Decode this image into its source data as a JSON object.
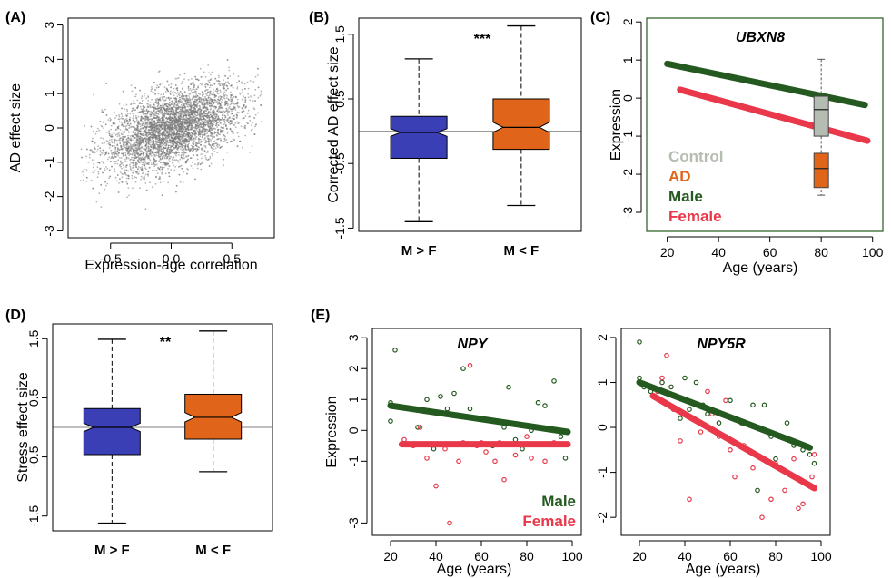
{
  "colors": {
    "scatter": "#7a7a7a",
    "blue": "#3a3fb5",
    "orange": "#e06419",
    "green": "#245a1f",
    "red": "#e8384a",
    "control": "#b5bdb2",
    "refline": "#9a9a9a"
  },
  "chart_data": [
    {
      "panel": "(A)",
      "type": "scatter",
      "xlabel": "Expression-age correlation",
      "ylabel": "AD effect size",
      "xlim": [
        -0.85,
        0.85
      ],
      "ylim": [
        -3.2,
        3.2
      ],
      "xticks": [
        "-0.5",
        "0.0",
        "0.5"
      ],
      "xtick_values": [
        -0.5,
        0.0,
        0.5
      ],
      "yticks": [
        "-3",
        "-2",
        "-1",
        "0",
        "1",
        "2",
        "3"
      ],
      "ytick_values": [
        -3,
        -2,
        -1,
        0,
        1,
        2,
        3
      ],
      "trend": {
        "slope": 1.15,
        "intercept": -0.05,
        "spread": 0.55
      }
    },
    {
      "panel": "(B)",
      "type": "box",
      "ylabel": "Corrected AD effect size",
      "categories": [
        "M > F",
        "M < F"
      ],
      "significance": "***",
      "ylim": [
        -1.55,
        1.75
      ],
      "yticks": [
        "-1.5",
        "-0.5",
        "0.5",
        "1.5"
      ],
      "ytick_values": [
        -1.5,
        -0.5,
        0.5,
        1.5
      ],
      "boxes": [
        {
          "min": -1.4,
          "q1": -0.42,
          "median": -0.02,
          "q3": 0.23,
          "max": 1.12,
          "notch": 0.06
        },
        {
          "min": -1.15,
          "q1": -0.28,
          "median": 0.06,
          "q3": 0.5,
          "max": 1.63,
          "notch": 0.08
        }
      ]
    },
    {
      "panel": "(C)",
      "type": "line",
      "title": "UBXN8",
      "xlabel": "Age (years)",
      "ylabel": "Expression",
      "xlim": [
        12,
        104
      ],
      "ylim": [
        -3.5,
        2.1
      ],
      "xticks": [
        "20",
        "40",
        "60",
        "80",
        "100"
      ],
      "xtick_values": [
        20,
        40,
        60,
        80,
        100
      ],
      "yticks": [
        "-3",
        "-2",
        "-1",
        "0",
        "1",
        "2"
      ],
      "ytick_values": [
        -3,
        -2,
        -1,
        0,
        1,
        2
      ],
      "series": [
        {
          "name": "Male",
          "x": [
            20,
            97
          ],
          "y": [
            0.9,
            -0.18
          ]
        },
        {
          "name": "Female",
          "x": [
            25,
            98
          ],
          "y": [
            0.22,
            -1.12
          ]
        }
      ],
      "boxes": [
        {
          "name": "Control",
          "x": 80,
          "min": -2.05,
          "q1": -1.0,
          "median": -0.3,
          "q3": 0.05,
          "max": 1.02
        },
        {
          "name": "AD",
          "x": 80,
          "min": -2.55,
          "q1": -2.35,
          "median": -1.85,
          "q3": -1.45,
          "max": -1.45
        }
      ],
      "legend": [
        "Control",
        "AD",
        "Male",
        "Female"
      ],
      "legend_position": "bottom-left"
    },
    {
      "panel": "(D)",
      "type": "box",
      "ylabel": "Stress effect size",
      "categories": [
        "M > F",
        "M < F"
      ],
      "significance": "**",
      "ylim": [
        -1.75,
        1.75
      ],
      "yticks": [
        "-1.5",
        "-0.5",
        "0.5",
        "1.5"
      ],
      "ytick_values": [
        -1.5,
        -0.5,
        0.5,
        1.5
      ],
      "boxes": [
        {
          "min": -1.62,
          "q1": -0.46,
          "median": 0.0,
          "q3": 0.32,
          "max": 1.49,
          "notch": 0.07
        },
        {
          "min": -0.75,
          "q1": -0.2,
          "median": 0.17,
          "q3": 0.56,
          "max": 1.63,
          "notch": 0.08
        }
      ]
    },
    {
      "panel": "(E)",
      "type": "scatter",
      "title": "NPY",
      "xlabel": "Age (years)",
      "ylabel": "Expression",
      "xlim": [
        12,
        104
      ],
      "ylim": [
        -3.4,
        3.3
      ],
      "xticks": [
        "20",
        "40",
        "60",
        "80",
        "100"
      ],
      "xtick_values": [
        20,
        40,
        60,
        80,
        100
      ],
      "yticks": [
        "-3",
        "-1",
        "0",
        "1",
        "2",
        "3"
      ],
      "ytick_values": [
        -3,
        -1,
        0,
        1,
        2,
        3
      ],
      "series": [
        {
          "name": "Male",
          "line": {
            "x": [
              20,
              98
            ],
            "y": [
              0.8,
              -0.05
            ]
          },
          "points": [
            [
              20,
              0.9
            ],
            [
              20,
              0.3
            ],
            [
              22,
              2.6
            ],
            [
              28,
              0.7
            ],
            [
              32,
              0.1
            ],
            [
              36,
              1.0
            ],
            [
              39,
              -0.6
            ],
            [
              42,
              1.1
            ],
            [
              45,
              0.7
            ],
            [
              48,
              1.2
            ],
            [
              52,
              2.0
            ],
            [
              55,
              0.7
            ],
            [
              58,
              0.4
            ],
            [
              65,
              -0.5
            ],
            [
              70,
              0.1
            ],
            [
              72,
              1.4
            ],
            [
              75,
              -0.3
            ],
            [
              78,
              -0.6
            ],
            [
              82,
              0.0
            ],
            [
              85,
              0.9
            ],
            [
              88,
              0.8
            ],
            [
              92,
              1.6
            ],
            [
              95,
              -0.2
            ],
            [
              97,
              -0.9
            ]
          ]
        },
        {
          "name": "Female",
          "line": {
            "x": [
              25,
              98
            ],
            "y": [
              -0.45,
              -0.45
            ]
          },
          "points": [
            [
              26,
              -0.3
            ],
            [
              30,
              -0.5
            ],
            [
              33,
              0.1
            ],
            [
              36,
              -0.9
            ],
            [
              40,
              -1.8
            ],
            [
              44,
              -0.6
            ],
            [
              46,
              -3.0
            ],
            [
              50,
              -1.0
            ],
            [
              52,
              -0.4
            ],
            [
              55,
              2.1
            ],
            [
              58,
              -0.5
            ],
            [
              60,
              -0.4
            ],
            [
              62,
              -0.7
            ],
            [
              66,
              -1.0
            ],
            [
              68,
              -0.4
            ],
            [
              70,
              -1.6
            ],
            [
              75,
              -0.8
            ],
            [
              80,
              -0.2
            ],
            [
              82,
              -0.9
            ],
            [
              88,
              -1.0
            ],
            [
              92,
              -0.4
            ]
          ]
        }
      ],
      "legend": [
        "Male",
        "Female"
      ],
      "legend_position": "bottom-right"
    },
    {
      "panel": "(E)",
      "type": "scatter",
      "title": "NPY5R",
      "xlabel": "Age (years)",
      "ylim": [
        -2.4,
        2.2
      ],
      "xlim": [
        12,
        104
      ],
      "xticks": [
        "20",
        "40",
        "60",
        "80",
        "100"
      ],
      "xtick_values": [
        20,
        40,
        60,
        80,
        100
      ],
      "yticks": [
        "-2",
        "-1",
        "0",
        "1",
        "2"
      ],
      "ytick_values": [
        -2,
        -1,
        0,
        1,
        2
      ],
      "series": [
        {
          "name": "Male",
          "line": {
            "x": [
              20,
              95
            ],
            "y": [
              1.0,
              -0.45
            ]
          },
          "points": [
            [
              20,
              1.9
            ],
            [
              20,
              1.1
            ],
            [
              22,
              0.9
            ],
            [
              25,
              0.8
            ],
            [
              30,
              1.0
            ],
            [
              34,
              0.9
            ],
            [
              38,
              0.2
            ],
            [
              40,
              1.1
            ],
            [
              42,
              0.4
            ],
            [
              45,
              1.0
            ],
            [
              48,
              0.5
            ],
            [
              50,
              0.3
            ],
            [
              55,
              0.1
            ],
            [
              58,
              -0.2
            ],
            [
              60,
              0.6
            ],
            [
              65,
              0.1
            ],
            [
              70,
              0.5
            ],
            [
              72,
              -1.4
            ],
            [
              75,
              0.5
            ],
            [
              78,
              -0.2
            ],
            [
              80,
              -0.7
            ],
            [
              85,
              0.1
            ],
            [
              88,
              -0.4
            ],
            [
              92,
              -0.5
            ],
            [
              95,
              -0.6
            ],
            [
              97,
              -0.8
            ]
          ]
        },
        {
          "name": "Female",
          "line": {
            "x": [
              26,
              97
            ],
            "y": [
              0.7,
              -1.35
            ]
          },
          "points": [
            [
              28,
              0.8
            ],
            [
              30,
              1.1
            ],
            [
              32,
              1.6
            ],
            [
              35,
              0.4
            ],
            [
              38,
              -0.3
            ],
            [
              42,
              -1.6
            ],
            [
              44,
              0.2
            ],
            [
              47,
              -0.1
            ],
            [
              50,
              0.8
            ],
            [
              52,
              0.3
            ],
            [
              55,
              -0.2
            ],
            [
              58,
              0.6
            ],
            [
              60,
              -0.5
            ],
            [
              62,
              -1.1
            ],
            [
              66,
              -0.4
            ],
            [
              70,
              -0.9
            ],
            [
              74,
              -2.0
            ],
            [
              78,
              -1.6
            ],
            [
              80,
              -0.8
            ],
            [
              84,
              -1.4
            ],
            [
              88,
              -0.7
            ],
            [
              90,
              -1.8
            ],
            [
              92,
              -1.7
            ],
            [
              96,
              -1.1
            ],
            [
              97,
              -0.6
            ]
          ]
        }
      ]
    }
  ]
}
